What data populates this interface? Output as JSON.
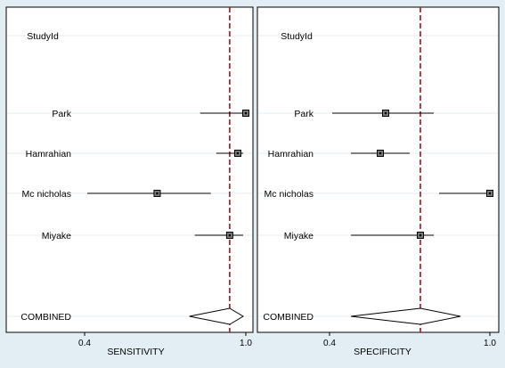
{
  "chart_data": [
    {
      "type": "forest",
      "xlabel": "SENSITIVITY",
      "header": "StudyId",
      "xlim": [
        0.4,
        1.0
      ],
      "xticks": [
        "0.4",
        "1.0"
      ],
      "reference_line": 0.94,
      "studies": [
        {
          "name": "Park",
          "estimate": 1.0,
          "ci": [
            0.83,
            1.0
          ]
        },
        {
          "name": "Hamrahian",
          "estimate": 0.97,
          "ci": [
            0.89,
            0.99
          ]
        },
        {
          "name": "Mc nicholas",
          "estimate": 0.67,
          "ci": [
            0.41,
            0.87
          ]
        },
        {
          "name": "Miyake",
          "estimate": 0.94,
          "ci": [
            0.81,
            0.99
          ]
        }
      ],
      "combined": {
        "name": "COMBINED",
        "estimate": 0.94,
        "ci": [
          0.79,
          0.99
        ]
      }
    },
    {
      "type": "forest",
      "xlabel": "SPECIFICITY",
      "header": "StudyId",
      "xlim": [
        0.4,
        1.0
      ],
      "xticks": [
        "0.4",
        "1.0"
      ],
      "reference_line": 0.74,
      "studies": [
        {
          "name": "Park",
          "estimate": 0.61,
          "ci": [
            0.41,
            0.79
          ]
        },
        {
          "name": "Hamrahian",
          "estimate": 0.59,
          "ci": [
            0.48,
            0.7
          ]
        },
        {
          "name": "Mc nicholas",
          "estimate": 1.0,
          "ci": [
            0.81,
            1.0
          ]
        },
        {
          "name": "Miyake",
          "estimate": 0.74,
          "ci": [
            0.48,
            0.79
          ]
        }
      ],
      "combined": {
        "name": "COMBINED",
        "estimate": 0.74,
        "ci": [
          0.48,
          0.89
        ]
      }
    }
  ]
}
